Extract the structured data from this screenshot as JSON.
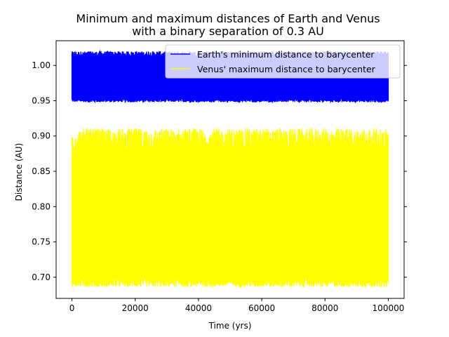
{
  "chart_data": {
    "type": "line",
    "title_lines": [
      "Minimum and maximum distances of Earth and Venus",
      "with a binary separation of 0.3 AU"
    ],
    "xlabel": "Time (yrs)",
    "ylabel": "Distance (AU)",
    "xlim": [
      -5000,
      105000
    ],
    "ylim": [
      0.67,
      1.035
    ],
    "xticks": [
      0,
      20000,
      40000,
      60000,
      80000,
      100000
    ],
    "xtick_labels": [
      "0",
      "20000",
      "40000",
      "60000",
      "80000",
      "100000"
    ],
    "yticks": [
      0.7,
      0.75,
      0.8,
      0.85,
      0.9,
      0.95,
      1.0
    ],
    "ytick_labels": [
      "0.70",
      "0.75",
      "0.80",
      "0.85",
      "0.90",
      "0.95",
      "1.00"
    ],
    "grid": false,
    "legend_position": "top-right",
    "series": [
      {
        "name": "Earth's minimum distance to barycenter",
        "color": "#0000ff",
        "x_range": [
          0,
          100000
        ],
        "band_low": [
          0.948,
          0.953
        ],
        "band_high": [
          1.012,
          1.02
        ],
        "envelope": [
          {
            "x": 0,
            "low": 0.952,
            "high": 1.016
          },
          {
            "x": 20000,
            "low": 0.95,
            "high": 1.018
          },
          {
            "x": 40000,
            "low": 0.951,
            "high": 1.019
          },
          {
            "x": 60000,
            "low": 0.95,
            "high": 1.018
          },
          {
            "x": 80000,
            "low": 0.951,
            "high": 1.017
          },
          {
            "x": 100000,
            "low": 0.952,
            "high": 1.016
          }
        ]
      },
      {
        "name": "Venus' maximum distance to barycenter",
        "color": "#ffff00",
        "x_range": [
          0,
          100000
        ],
        "band_low": [
          0.686,
          0.7
        ],
        "band_high": [
          0.875,
          0.911
        ],
        "envelope": [
          {
            "x": 0,
            "low": 0.696,
            "high": 0.89
          },
          {
            "x": 20000,
            "low": 0.692,
            "high": 0.9
          },
          {
            "x": 40000,
            "low": 0.69,
            "high": 0.905
          },
          {
            "x": 60000,
            "low": 0.692,
            "high": 0.905
          },
          {
            "x": 80000,
            "low": 0.691,
            "high": 0.902
          },
          {
            "x": 100000,
            "low": 0.694,
            "high": 0.892
          }
        ]
      }
    ]
  }
}
